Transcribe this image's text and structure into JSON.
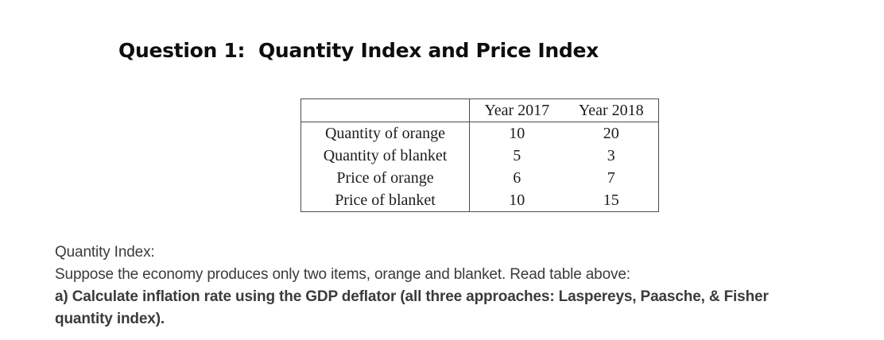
{
  "title": {
    "text": "Question 1:  Quantity Index and Price Index"
  },
  "table": {
    "header": [
      "",
      "Year 2017",
      "Year 2018"
    ],
    "rows": [
      {
        "label": "Quantity of orange",
        "y2017": "10",
        "y2018": "20"
      },
      {
        "label": "Quantity of blanket",
        "y2017": "5",
        "y2018": "3"
      },
      {
        "label": "Price of orange",
        "y2017": "6",
        "y2018": "7"
      },
      {
        "label": "Price of blanket",
        "y2017": "10",
        "y2018": "15"
      }
    ],
    "border_color": "#4d4d4d"
  },
  "body": {
    "text_color": "#3b3b3d",
    "lines": [
      "Quantity Index:",
      "Suppose the economy produces only two items, orange and blanket. Read table above:",
      "a) Calculate inflation rate using the GDP deflator (all three approaches: Laspereys, Paasche, & Fisher",
      "quantity index)."
    ]
  }
}
